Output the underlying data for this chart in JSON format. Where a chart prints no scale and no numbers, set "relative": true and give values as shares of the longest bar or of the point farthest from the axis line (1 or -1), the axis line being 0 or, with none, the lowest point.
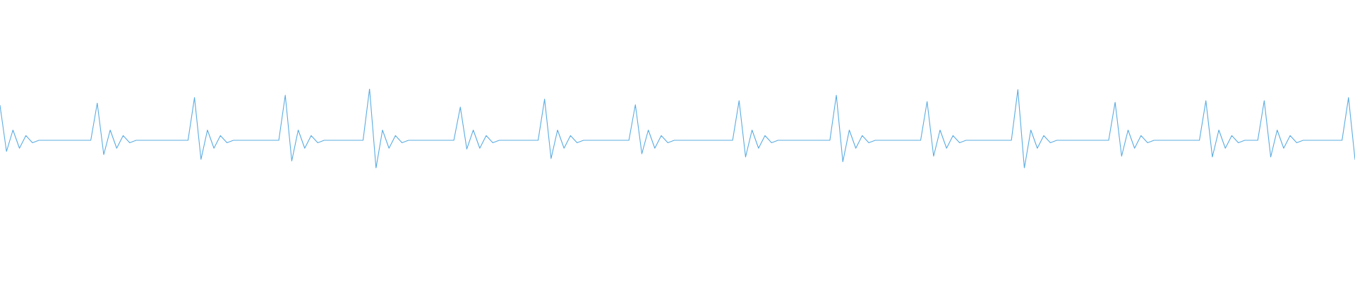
{
  "chart_data": {
    "type": "line",
    "relative": true,
    "legend": false,
    "tick_labels": false,
    "categories": [
      null,
      null,
      null,
      null,
      null,
      null,
      null,
      null,
      null,
      null,
      null,
      null,
      null,
      null,
      null,
      null,
      null,
      null,
      null,
      null,
      null,
      null,
      null,
      null,
      null,
      null,
      null,
      null,
      null,
      null,
      null,
      null,
      null,
      null,
      null,
      null,
      null,
      null,
      null,
      null,
      null,
      null,
      null,
      null,
      null,
      null,
      null,
      null,
      null,
      null,
      null,
      null,
      null,
      null,
      null,
      null,
      null,
      null,
      null,
      null,
      null,
      null,
      null,
      null,
      null,
      null,
      null,
      null,
      null,
      null,
      null,
      null,
      null,
      null,
      null,
      null,
      null,
      null,
      null,
      null,
      null,
      null,
      null,
      null,
      null,
      null,
      null,
      null,
      null,
      null,
      null,
      null,
      null,
      null,
      null,
      null,
      null,
      null,
      null,
      null,
      null,
      null,
      null,
      null,
      null,
      null,
      null,
      null,
      null,
      null,
      null,
      null,
      null,
      null,
      null,
      null,
      null,
      null,
      null,
      null,
      null,
      null,
      null,
      null,
      null,
      null,
      null,
      null,
      null,
      null,
      null,
      null,
      null,
      null,
      null,
      null,
      null,
      null,
      null,
      null,
      null,
      null,
      null,
      null,
      null,
      null,
      null,
      null,
      null,
      null,
      null,
      null,
      null,
      null,
      null,
      null,
      null,
      null,
      null,
      null,
      null,
      null,
      null,
      null,
      null,
      null,
      null,
      null,
      null,
      null,
      null,
      null,
      null,
      null,
      null,
      null,
      null,
      null,
      null,
      null,
      null,
      null,
      null,
      null,
      null,
      null,
      null,
      null,
      null,
      null,
      null,
      null,
      null,
      null,
      null,
      null,
      null,
      null,
      null,
      null,
      null,
      null,
      null,
      null,
      null,
      null,
      null,
      null,
      null,
      null
    ],
    "series": [
      {
        "color": "#5dade2",
        "values": [
          0.79,
          0.21,
          0.48,
          0.25,
          0.41,
          0.32,
          0.35,
          0.35,
          0.35,
          0.35,
          0.35,
          0.35,
          0.35,
          0.35,
          0.35,
          0.82,
          0.17,
          0.48,
          0.25,
          0.41,
          0.32,
          0.35,
          0.35,
          0.35,
          0.35,
          0.35,
          0.35,
          0.35,
          0.35,
          0.35,
          0.89,
          0.11,
          0.48,
          0.25,
          0.41,
          0.32,
          0.35,
          0.35,
          0.35,
          0.35,
          0.35,
          0.35,
          0.35,
          0.35,
          0.92,
          0.09,
          0.48,
          0.25,
          0.41,
          0.32,
          0.35,
          0.35,
          0.35,
          0.35,
          0.35,
          0.35,
          0.35,
          1,
          0,
          0.48,
          0.25,
          0.41,
          0.32,
          0.35,
          0.35,
          0.35,
          0.35,
          0.35,
          0.35,
          0.35,
          0.35,
          0.77,
          0.24,
          0.48,
          0.25,
          0.41,
          0.32,
          0.35,
          0.35,
          0.35,
          0.35,
          0.35,
          0.35,
          0.35,
          0.87,
          0.12,
          0.48,
          0.25,
          0.41,
          0.32,
          0.35,
          0.35,
          0.35,
          0.35,
          0.35,
          0.35,
          0.35,
          0.35,
          0.8,
          0.18,
          0.48,
          0.25,
          0.41,
          0.32,
          0.35,
          0.35,
          0.35,
          0.35,
          0.35,
          0.35,
          0.35,
          0.35,
          0.35,
          0.35,
          0.85,
          0.14,
          0.48,
          0.25,
          0.41,
          0.32,
          0.35,
          0.35,
          0.35,
          0.35,
          0.35,
          0.35,
          0.35,
          0.35,
          0.35,
          0.92,
          0.08,
          0.48,
          0.25,
          0.41,
          0.32,
          0.35,
          0.35,
          0.35,
          0.35,
          0.35,
          0.35,
          0.35,
          0.35,
          0.84,
          0.15,
          0.48,
          0.25,
          0.41,
          0.32,
          0.35,
          0.35,
          0.35,
          0.35,
          0.35,
          0.35,
          0.35,
          0.35,
          0.99,
          0,
          0.48,
          0.25,
          0.41,
          0.32,
          0.35,
          0.35,
          0.35,
          0.35,
          0.35,
          0.35,
          0.35,
          0.35,
          0.35,
          0.83,
          0.15,
          0.48,
          0.25,
          0.41,
          0.32,
          0.35,
          0.35,
          0.35,
          0.35,
          0.35,
          0.35,
          0.35,
          0.35,
          0.85,
          0.14,
          0.48,
          0.25,
          0.41,
          0.32,
          0.35,
          0.35,
          0.35,
          0.85,
          0.14,
          0.48,
          0.25,
          0.41,
          0.32,
          0.35,
          0.35,
          0.35,
          0.35,
          0.35,
          0.35,
          0.35,
          0.89,
          0.11
        ]
      }
    ]
  }
}
